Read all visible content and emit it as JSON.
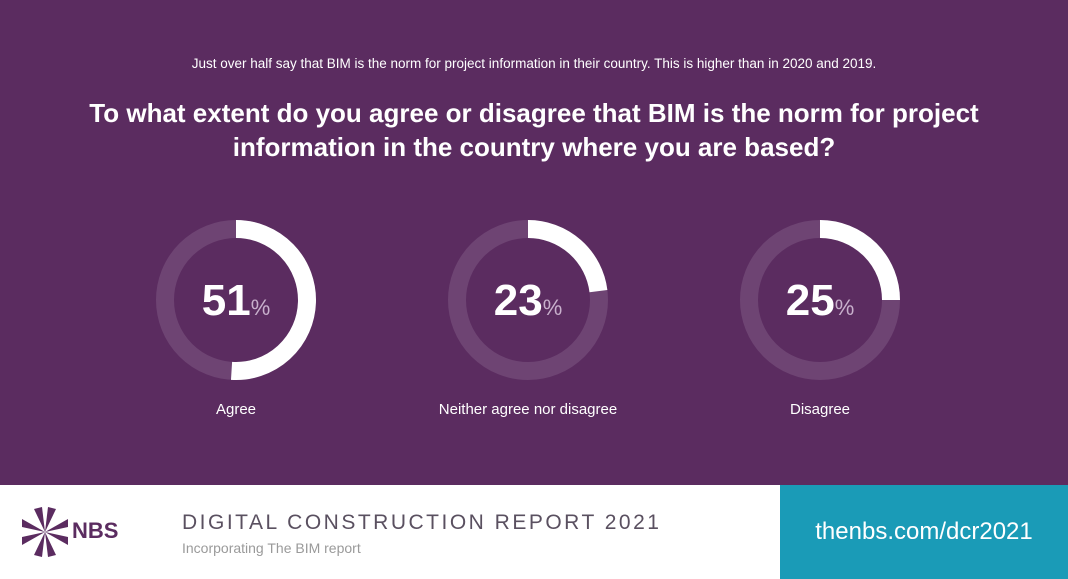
{
  "chart_data": {
    "type": "donut",
    "subtitle": "Just over half say that BIM is the norm for project information in their country. This is higher than in 2020 and 2019.",
    "title": "To what extent do you agree or disagree that BIM is the norm for project information in the country where you are based?",
    "categories": [
      "Agree",
      "Neither agree nor disagree",
      "Disagree"
    ],
    "values": [
      51,
      23,
      25
    ],
    "unit": "%",
    "colors": {
      "background": "#5b2c60",
      "ring": "#ffffff",
      "track": "#6e4473"
    }
  },
  "footer": {
    "logo": "NBS",
    "report_title": "DIGITAL CONSTRUCTION REPORT 2021",
    "report_subtitle": "Incorporating The BIM report",
    "url": "thenbs.com/dcr2021"
  }
}
